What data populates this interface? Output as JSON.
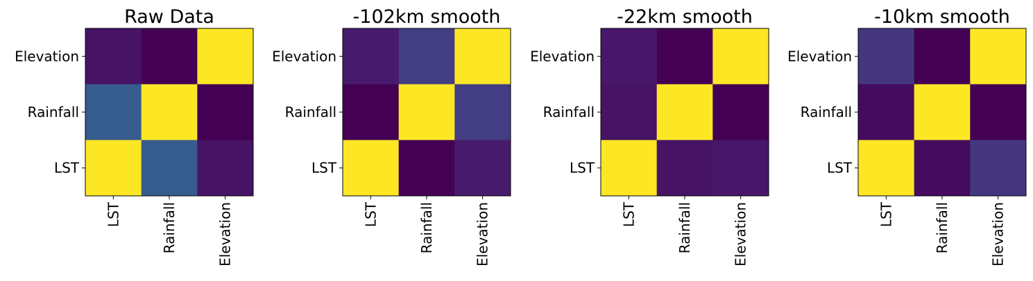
{
  "chart_data": [
    {
      "type": "heatmap",
      "title": "Raw Data",
      "x_categories": [
        "LST",
        "Rainfall",
        "Elevation"
      ],
      "y_categories": [
        "Elevation",
        "Rainfall",
        "LST"
      ],
      "cell_colors": [
        [
          "#471365",
          "#440154",
          "#fde725"
        ],
        [
          "#365c8d",
          "#fde725",
          "#440154"
        ],
        [
          "#fde725",
          "#365c8d",
          "#471365"
        ]
      ]
    },
    {
      "type": "heatmap",
      "title": "-102km smooth",
      "x_categories": [
        "LST",
        "Rainfall",
        "Elevation"
      ],
      "y_categories": [
        "Elevation",
        "Rainfall",
        "LST"
      ],
      "cell_colors": [
        [
          "#481b6d",
          "#433d84",
          "#fde725"
        ],
        [
          "#440154",
          "#fde725",
          "#433d84"
        ],
        [
          "#fde725",
          "#440154",
          "#481b6d"
        ]
      ]
    },
    {
      "type": "heatmap",
      "title": "-22km smooth",
      "x_categories": [
        "LST",
        "Rainfall",
        "Elevation"
      ],
      "y_categories": [
        "Elevation",
        "Rainfall",
        "LST"
      ],
      "cell_colors": [
        [
          "#481769",
          "#440154",
          "#fde725"
        ],
        [
          "#471365",
          "#fde725",
          "#440154"
        ],
        [
          "#fde725",
          "#471365",
          "#481769"
        ]
      ]
    },
    {
      "type": "heatmap",
      "title": "-10km smooth",
      "x_categories": [
        "LST",
        "Rainfall",
        "Elevation"
      ],
      "y_categories": [
        "Elevation",
        "Rainfall",
        "LST"
      ],
      "cell_colors": [
        [
          "#443780",
          "#440154",
          "#fde725"
        ],
        [
          "#450b5e",
          "#fde725",
          "#440154"
        ],
        [
          "#fde725",
          "#450b5e",
          "#443780"
        ]
      ]
    }
  ]
}
